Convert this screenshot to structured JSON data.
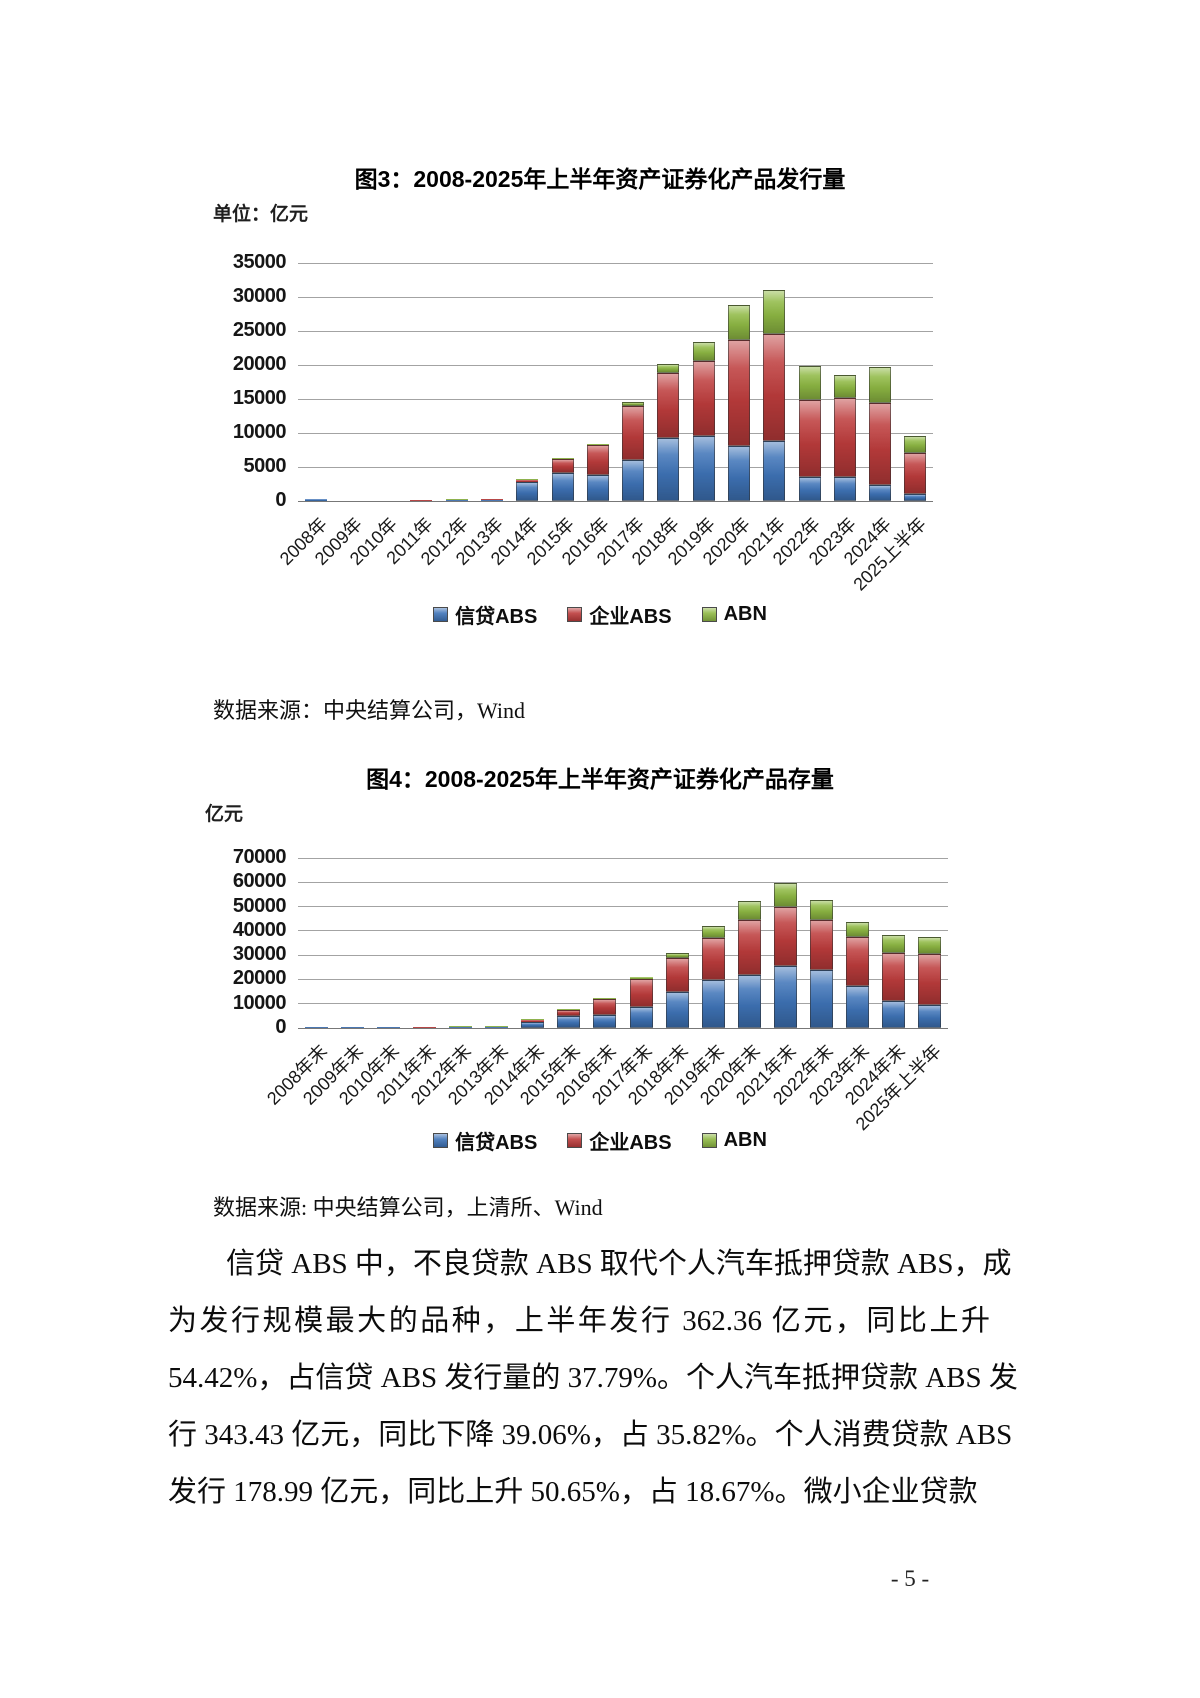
{
  "page_number": "- 5 -",
  "paragraph": {
    "lines": [
      "信贷 ABS 中，不良贷款 ABS 取代个人汽车抵押贷款 ABS，成",
      "为发行规模最大的品种，上半年发行 362.36 亿元，同比上升",
      "54.42%，占信贷 ABS 发行量的 37.79%。个人汽车抵押贷款 ABS 发",
      "行 343.43 亿元，同比下降 39.06%，占 35.82%。个人消费贷款 ABS",
      "发行 178.99 亿元，同比上升 50.65%，占 18.67%。微小企业贷款"
    ]
  },
  "chart_data": [
    {
      "type": "bar",
      "stacked": true,
      "title": "图3：2008-2025年上半年资产证券化产品发行量",
      "unit_label": "单位：亿元",
      "source": "数据来源：中央结算公司，Wind",
      "legend_position": "bottom",
      "grid": true,
      "ylim": [
        0,
        35000
      ],
      "ytick_step": 5000,
      "yticks": [
        "0",
        "5000",
        "10000",
        "15000",
        "20000",
        "25000",
        "30000",
        "35000"
      ],
      "categories": [
        "2008年",
        "2009年",
        "2010年",
        "2011年",
        "2012年",
        "2013年",
        "2014年",
        "2015年",
        "2016年",
        "2017年",
        "2018年",
        "2019年",
        "2020年",
        "2021年",
        "2022年",
        "2023年",
        "2024年",
        "2025上半年"
      ],
      "series": [
        {
          "name": "信贷ABS",
          "color": "#3f74b8",
          "values": [
            302,
            0,
            0,
            0,
            193,
            158,
            2793,
            4056,
            3869,
            5977,
            9318,
            9634,
            8041,
            8815,
            3565,
            3485,
            2341,
            959
          ]
        },
        {
          "name": "企业ABS",
          "color": "#bd3c3c",
          "values": [
            0,
            0,
            0,
            13,
            26,
            46,
            342,
            2067,
            4359,
            7968,
            9502,
            10917,
            15577,
            15722,
            11341,
            11706,
            12061,
            6063
          ]
        },
        {
          "name": "ABN",
          "color": "#8fb944",
          "values": [
            0,
            0,
            0,
            0,
            89,
            0,
            89,
            35,
            156,
            585,
            1261,
            2888,
            5137,
            6535,
            4976,
            3322,
            5369,
            2589
          ]
        }
      ]
    },
    {
      "type": "bar",
      "stacked": true,
      "title": "图4：2008-2025年上半年资产证券化产品存量",
      "unit_label": "亿元",
      "source": "数据来源: 中央结算公司，上清所、Wind",
      "legend_position": "bottom",
      "grid": true,
      "ylim": [
        0,
        70000
      ],
      "ytick_step": 10000,
      "yticks": [
        "0",
        "10000",
        "20000",
        "30000",
        "40000",
        "50000",
        "60000",
        "70000"
      ],
      "categories": [
        "2008年末",
        "2009年末",
        "2010年末",
        "2011年末",
        "2012年末",
        "2013年末",
        "2014年末",
        "2015年末",
        "2016年末",
        "2017年末",
        "2018年末",
        "2019年末",
        "2020年末",
        "2021年末",
        "2022年末",
        "2023年末",
        "2024年末",
        "2025年上半年"
      ],
      "series": [
        {
          "name": "信贷ABS",
          "color": "#3f74b8",
          "values": [
            502,
            318,
            157,
            28,
            228,
            278,
            2680,
            4890,
            5510,
            8830,
            15000,
            19600,
            21900,
            25500,
            23900,
            17400,
            11000,
            9400
          ]
        },
        {
          "name": "企业ABS",
          "color": "#bd3c3c",
          "values": [
            0,
            0,
            0,
            12,
            41,
            74,
            480,
            2520,
            6370,
            11300,
            13700,
            17600,
            22400,
            24200,
            20400,
            19900,
            19800,
            20900
          ]
        },
        {
          "name": "ABN",
          "color": "#8fb944",
          "values": [
            0,
            0,
            0,
            0,
            89,
            89,
            89,
            120,
            450,
            950,
            2300,
            4700,
            7900,
            9900,
            8400,
            6400,
            7300,
            7200
          ]
        }
      ]
    }
  ]
}
